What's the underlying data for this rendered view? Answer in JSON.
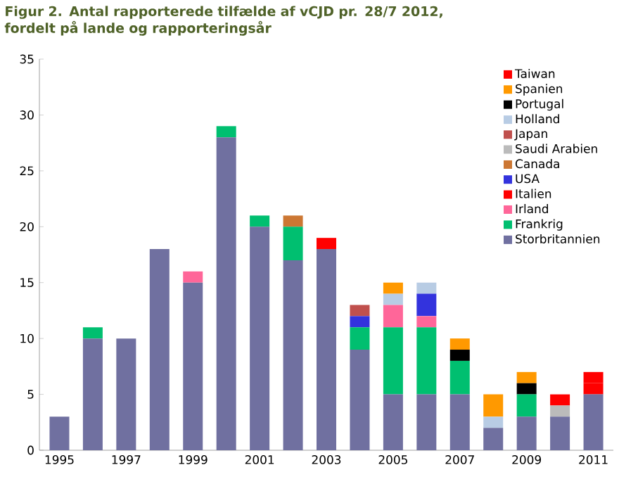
{
  "chart_data": {
    "type": "bar",
    "stacked": true,
    "title": "Figur 2. Antal rapporterede tilfælde af vCJD pr. 28/7 2012, fordelt på lande og rapporteringsår",
    "categories": [
      "1995",
      null,
      "1997",
      null,
      "1999",
      null,
      "2001",
      null,
      "2003",
      null,
      "2005",
      null,
      "2007",
      null,
      "2009",
      null,
      "2011"
    ],
    "ylim": [
      0,
      35
    ],
    "yticks": [
      0,
      5,
      10,
      15,
      20,
      25,
      30,
      35
    ],
    "legend": "top right",
    "grid": false,
    "series": [
      {
        "name": "Storbritannien",
        "color": "#7070a0",
        "values": [
          3,
          10,
          10,
          18,
          15,
          28,
          20,
          17,
          18,
          9,
          5,
          5,
          5,
          2,
          3,
          3,
          5
        ]
      },
      {
        "name": "Frankrig",
        "color": "#00bf70",
        "values": [
          0,
          1,
          0,
          0,
          0,
          1,
          1,
          3,
          0,
          2,
          6,
          6,
          3,
          0,
          2,
          0,
          0
        ]
      },
      {
        "name": "Irland",
        "color": "#ff6699",
        "values": [
          0,
          0,
          0,
          0,
          1,
          0,
          0,
          0,
          0,
          0,
          2,
          1,
          0,
          0,
          0,
          0,
          0
        ]
      },
      {
        "name": "Italien",
        "color": "#ff0000",
        "values": [
          0,
          0,
          0,
          0,
          0,
          0,
          0,
          0,
          1,
          0,
          0,
          0,
          0,
          0,
          0,
          0,
          1
        ]
      },
      {
        "name": "USA",
        "color": "#3333dd",
        "values": [
          0,
          0,
          0,
          0,
          0,
          0,
          0,
          0,
          0,
          1,
          0,
          2,
          0,
          0,
          0,
          0,
          0
        ]
      },
      {
        "name": "Canada",
        "color": "#cc7733",
        "values": [
          0,
          0,
          0,
          0,
          0,
          0,
          0,
          1,
          0,
          0,
          0,
          0,
          0,
          0,
          0,
          0,
          0
        ]
      },
      {
        "name": "Saudi Arabien",
        "color": "#bbbbbb",
        "values": [
          0,
          0,
          0,
          0,
          0,
          0,
          0,
          0,
          0,
          0,
          0,
          0,
          0,
          0,
          0,
          1,
          0
        ]
      },
      {
        "name": "Japan",
        "color": "#c0504d",
        "values": [
          0,
          0,
          0,
          0,
          0,
          0,
          0,
          0,
          0,
          1,
          0,
          0,
          0,
          0,
          0,
          0,
          0
        ]
      },
      {
        "name": "Holland",
        "color": "#b8cce4",
        "values": [
          0,
          0,
          0,
          0,
          0,
          0,
          0,
          0,
          0,
          0,
          1,
          1,
          0,
          1,
          0,
          0,
          0
        ]
      },
      {
        "name": "Portugal",
        "color": "#000000",
        "values": [
          0,
          0,
          0,
          0,
          0,
          0,
          0,
          0,
          0,
          0,
          0,
          0,
          1,
          0,
          1,
          0,
          0
        ]
      },
      {
        "name": "Spanien",
        "color": "#ff9900",
        "values": [
          0,
          0,
          0,
          0,
          0,
          0,
          0,
          0,
          0,
          0,
          1,
          0,
          1,
          2,
          1,
          0,
          0
        ]
      },
      {
        "name": "Taiwan",
        "color": "#ff0000",
        "values": [
          0,
          0,
          0,
          0,
          0,
          0,
          0,
          0,
          0,
          0,
          0,
          0,
          0,
          0,
          0,
          1,
          1
        ]
      }
    ]
  }
}
